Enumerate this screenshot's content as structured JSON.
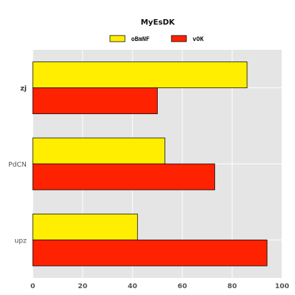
{
  "chart_data": {
    "type": "bar",
    "orientation": "horizontal",
    "title": "MyEsDK",
    "xlabel": "",
    "ylabel": "",
    "xlim": [
      0,
      100
    ],
    "xticks": [
      "0",
      "20",
      "40",
      "60",
      "80",
      "100"
    ],
    "categories": [
      "upz",
      "PdCN",
      "zj"
    ],
    "series": [
      {
        "name": "oBmNF",
        "values": [
          42,
          53,
          86
        ],
        "color": "#FFEE00"
      },
      {
        "name": "vOK",
        "values": [
          94,
          73,
          50
        ],
        "color": "#FF2200"
      }
    ],
    "grid": true,
    "legend": "top-center",
    "background": "#E5E5E5",
    "gridColor": "#FFFFFF"
  }
}
